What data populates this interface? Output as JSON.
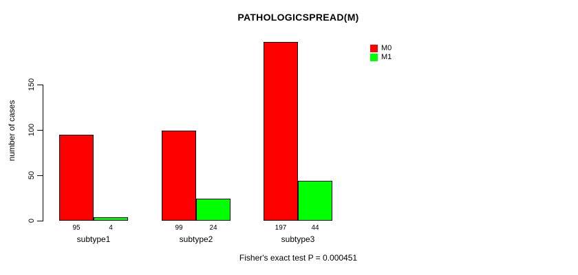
{
  "header": {
    "title": "PATHOLOGICSPREAD(M)"
  },
  "colors": {
    "m0": "#ff0000",
    "m1": "#00ff00",
    "axis": "#000000",
    "background": "#ffffff"
  },
  "legend": {
    "position": "top-right",
    "items": [
      {
        "label": "M0",
        "color": "#ff0000"
      },
      {
        "label": "M1",
        "color": "#00ff00"
      }
    ]
  },
  "chart_data": {
    "type": "bar",
    "title": "PATHOLOGICSPREAD(M)",
    "ylabel": "number of cases",
    "xlabel": "",
    "categories": [
      "subtype1",
      "subtype2",
      "subtype3"
    ],
    "series": [
      {
        "name": "M0",
        "color": "#ff0000",
        "values": [
          95,
          99,
          197
        ]
      },
      {
        "name": "M1",
        "color": "#00ff00",
        "values": [
          4,
          24,
          44
        ]
      }
    ],
    "bar_value_labels": [
      [
        95,
        4
      ],
      [
        99,
        24
      ],
      [
        197,
        44
      ]
    ],
    "yticks": [
      0,
      50,
      100,
      150
    ],
    "ylim": [
      0,
      200
    ],
    "grid": false,
    "legend_position": "top-right",
    "annotation": "Fisher's exact test P = 0.000451"
  }
}
